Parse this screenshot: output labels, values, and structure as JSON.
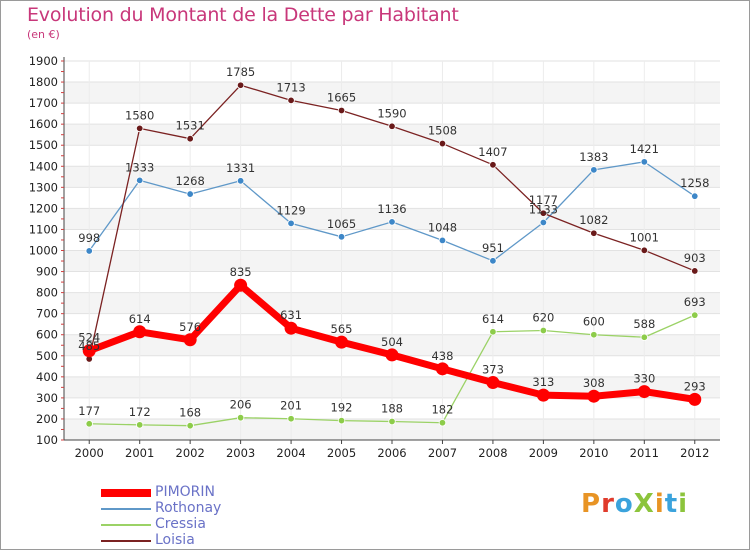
{
  "title": "Evolution du Montant de la Dette par Habitant",
  "unit": "(en €)",
  "logo": {
    "text": "ProXiti",
    "colors": [
      "#e89425",
      "#e03b2c",
      "#3ba3dc",
      "#8cc43c",
      "#e89425",
      "#3ba3dc",
      "#8cc43c"
    ]
  },
  "chart_data": {
    "type": "line",
    "title": "Evolution du Montant de la Dette par Habitant",
    "xlabel": "",
    "ylabel": "(en €)",
    "x": [
      2000,
      2001,
      2002,
      2003,
      2004,
      2005,
      2006,
      2007,
      2008,
      2009,
      2010,
      2011,
      2012
    ],
    "ylim": [
      100,
      1900
    ],
    "yticks": [
      100,
      200,
      300,
      400,
      500,
      600,
      700,
      800,
      900,
      1000,
      1100,
      1200,
      1300,
      1400,
      1500,
      1600,
      1700,
      1800,
      1900
    ],
    "grid": true,
    "legend_position": "bottom-left",
    "series": [
      {
        "name": "PIMORIN",
        "color": "#ff0000",
        "dot": "#ff0000",
        "width": 7,
        "values": [
          524,
          614,
          576,
          835,
          631,
          565,
          504,
          438,
          373,
          313,
          308,
          330,
          293
        ]
      },
      {
        "name": "Rothonay",
        "color": "#5f98c8",
        "dot": "#3d87c8",
        "width": 1.3,
        "values": [
          998,
          1333,
          1268,
          1331,
          1129,
          1065,
          1136,
          1048,
          951,
          1133,
          1383,
          1421,
          1258
        ]
      },
      {
        "name": "Cressia",
        "color": "#9bd266",
        "dot": "#8dcc4a",
        "width": 1.3,
        "values": [
          177,
          172,
          168,
          206,
          201,
          192,
          188,
          182,
          614,
          620,
          600,
          588,
          693
        ]
      },
      {
        "name": "Loisia",
        "color": "#7b2222",
        "dot": "#6a1a1a",
        "width": 1.3,
        "values": [
          485,
          1580,
          1531,
          1785,
          1713,
          1665,
          1590,
          1508,
          1407,
          1177,
          1082,
          1001,
          903
        ]
      }
    ]
  }
}
